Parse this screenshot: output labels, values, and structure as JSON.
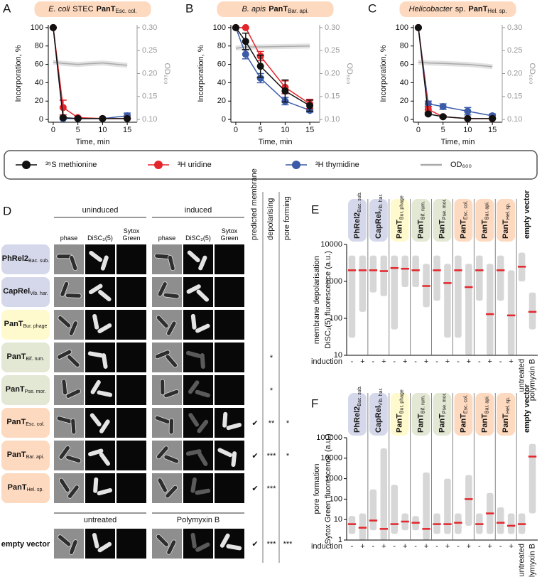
{
  "chart_data": [
    {
      "type": "line",
      "panel": "A",
      "title_italic": "E. coli",
      "title": "STEC",
      "title_bold": "PanT",
      "title_sub": "Esc. col.",
      "title_color": "#fdd9bf",
      "xlabel": "Time, min",
      "ylabel": "Incorporation, %",
      "y2label": "OD₆₀₀",
      "x": [
        0,
        2,
        5,
        10,
        15
      ],
      "xlim": [
        -1,
        17
      ],
      "xticks": [
        0,
        5,
        10,
        15
      ],
      "ylim": [
        -3,
        103
      ],
      "yticks": [
        0,
        20,
        40,
        60,
        80,
        100
      ],
      "y2lim": [
        0.094,
        0.306
      ],
      "y2ticks": [
        {
          "value": 0.1,
          "label": "0.10"
        },
        {
          "value": 0.15,
          "label": "0.15"
        },
        {
          "value": 0.2,
          "label": "0.20"
        },
        {
          "value": 0.25,
          "label": "0.25"
        },
        {
          "value": 0.3,
          "label": "0.30"
        }
      ],
      "legend": "bottom",
      "series": [
        {
          "name": "³⁵S methionine",
          "color": "#111111",
          "values": [
            100,
            2,
            1,
            1,
            1
          ],
          "errors": [
            0,
            1,
            1,
            0,
            0
          ]
        },
        {
          "name": "³H uridine",
          "color": "#e3262b",
          "values": [
            100,
            13,
            2,
            1,
            1
          ],
          "errors": [
            0,
            8,
            1,
            0,
            0
          ]
        },
        {
          "name": "³H thymidine",
          "color": "#3b5ba9",
          "values": [
            100,
            1,
            1,
            1,
            4
          ],
          "errors": [
            0,
            1,
            0,
            0,
            3
          ]
        },
        {
          "name": "OD₆₀₀",
          "color": "#aaaaaa",
          "axis": "y2",
          "values": [
            0.225,
            0.222,
            0.22,
            0.223,
            0.218
          ]
        }
      ]
    },
    {
      "type": "line",
      "panel": "B",
      "title_italic": "B. apis",
      "title_bold": "PanT",
      "title_sub": "Bar. api.",
      "title_color": "#fdd9bf",
      "xlabel": "Time, min",
      "ylabel": "Incorporation, %",
      "y2label": "OD₆₀₀",
      "x": [
        0,
        2,
        5,
        10,
        15
      ],
      "xlim": [
        -1,
        17
      ],
      "xticks": [
        0,
        5,
        10,
        15
      ],
      "ylim": [
        -3,
        103
      ],
      "yticks": [
        0,
        20,
        40,
        60,
        80,
        100
      ],
      "y2lim": [
        0.094,
        0.306
      ],
      "y2ticks": [
        {
          "value": 0.1,
          "label": "0.10"
        },
        {
          "value": 0.15,
          "label": "0.15"
        },
        {
          "value": 0.2,
          "label": "0.20"
        },
        {
          "value": 0.25,
          "label": "0.25"
        },
        {
          "value": 0.3,
          "label": "0.30"
        }
      ],
      "series": [
        {
          "color": "#111111",
          "values": [
            100,
            85,
            58,
            31,
            15
          ],
          "errors": [
            0,
            9,
            12,
            12,
            6
          ]
        },
        {
          "color": "#e3262b",
          "values": [
            100,
            100,
            69,
            35,
            17
          ],
          "errors": [
            0,
            0,
            5,
            7,
            5
          ]
        },
        {
          "color": "#3b5ba9",
          "values": [
            100,
            71,
            45,
            20,
            10
          ],
          "errors": [
            0,
            5,
            5,
            4,
            2
          ]
        },
        {
          "color": "#aaaaaa",
          "axis": "y2",
          "values": [
            0.255,
            0.258,
            0.258,
            0.259,
            0.26
          ]
        }
      ]
    },
    {
      "type": "line",
      "panel": "C",
      "title_italic": "Helicobacter",
      "title": "sp.",
      "title_bold": "PanT",
      "title_sub": "Hel. sp.",
      "title_color": "#fdd9bf",
      "xlabel": "Time, min",
      "ylabel": "Incorporation, %",
      "y2label": "OD₆₀₀",
      "x": [
        0,
        2,
        5,
        10,
        15
      ],
      "xlim": [
        -1,
        17
      ],
      "xticks": [
        0,
        5,
        10,
        15
      ],
      "ylim": [
        -3,
        103
      ],
      "yticks": [
        0,
        20,
        40,
        60,
        80,
        100
      ],
      "y2lim": [
        0.094,
        0.306
      ],
      "y2ticks": [
        {
          "value": 0.1,
          "label": "0.10"
        },
        {
          "value": 0.15,
          "label": "0.15"
        },
        {
          "value": 0.2,
          "label": "0.20"
        },
        {
          "value": 0.25,
          "label": "0.25"
        },
        {
          "value": 0.3,
          "label": "0.30"
        }
      ],
      "series": [
        {
          "color": "#111111",
          "values": [
            100,
            6,
            3,
            1,
            1
          ],
          "errors": [
            0,
            1,
            1,
            0,
            0
          ]
        },
        {
          "color": "#e3262b",
          "values": [
            100,
            11,
            3,
            1,
            1
          ],
          "errors": [
            0,
            3,
            1,
            0,
            0
          ]
        },
        {
          "color": "#3b5ba9",
          "values": [
            100,
            17,
            14,
            9,
            4
          ],
          "errors": [
            0,
            3,
            3,
            4,
            2
          ]
        },
        {
          "color": "#aaaaaa",
          "axis": "y2",
          "values": [
            0.225,
            0.223,
            0.222,
            0.22,
            0.215
          ]
        }
      ]
    },
    {
      "type": "strip",
      "panel": "E",
      "side_label": "membrane depolarisation",
      "ylabel": "DiSC₃(5) fluorescence (a.u.)",
      "xlabel": "induction",
      "log": true,
      "ylim": [
        10,
        10000
      ],
      "yticks": [
        10,
        100,
        1000,
        10000
      ],
      "median_color": "#e3262b",
      "groups": [
        {
          "name": "PhRel2",
          "sub": "Bac. sub.",
          "color": "#d5d8ea"
        },
        {
          "name": "CapRel",
          "sub": "Vib. har.",
          "color": "#d5d8ea"
        },
        {
          "name": "PanT",
          "sub": "Bur. phage",
          "color": "#fffacd"
        },
        {
          "name": "PanT",
          "sub": "Bif. rum.",
          "color": "#e2e8d3"
        },
        {
          "name": "PanT",
          "sub": "Pse. mor.",
          "color": "#e2e8d3"
        },
        {
          "name": "PanT",
          "sub": "Esc. col.",
          "color": "#fdd9bf"
        },
        {
          "name": "PanT",
          "sub": "Bar. api.",
          "color": "#fdd9bf"
        },
        {
          "name": "PanT",
          "sub": "Hel. sp.",
          "color": "#fdd9bf"
        },
        {
          "name": "empty vector"
        }
      ],
      "categories": [
        "-",
        "+",
        "-",
        "+",
        "-",
        "+",
        "-",
        "+",
        "-",
        "+",
        "-",
        "+",
        "-",
        "+",
        "-",
        "+",
        "untreated",
        "polymyxin B"
      ],
      "values": [
        2000,
        2000,
        2000,
        1900,
        2300,
        2200,
        2000,
        750,
        2000,
        900,
        2000,
        700,
        2000,
        130,
        2000,
        120,
        2500,
        150
      ],
      "ranges": [
        [
          30,
          5000
        ],
        [
          150,
          5000
        ],
        [
          500,
          5000
        ],
        [
          400,
          5000
        ],
        [
          50,
          5000
        ],
        [
          700,
          5000
        ],
        [
          700,
          5000
        ],
        [
          200,
          3000
        ],
        [
          300,
          5000
        ],
        [
          30,
          3000
        ],
        [
          30,
          5000
        ],
        [
          10,
          3000
        ],
        [
          300,
          5000
        ],
        [
          10,
          3000
        ],
        [
          300,
          5000
        ],
        [
          10,
          2000
        ],
        [
          1000,
          6000
        ],
        [
          50,
          500
        ]
      ]
    },
    {
      "type": "strip",
      "panel": "F",
      "side_label": "pore formation",
      "ylabel": "Sytox Green fluorescence (a.u.)",
      "xlabel": "induction",
      "log": true,
      "ylim": [
        1,
        100000
      ],
      "yticks": [
        1,
        10,
        100,
        1000,
        10000,
        100000
      ],
      "median_color": "#e3262b",
      "groups": [
        {
          "name": "PhRel2",
          "sub": "Bac. sub.",
          "color": "#d5d8ea"
        },
        {
          "name": "CapRel",
          "sub": "Vib. har.",
          "color": "#d5d8ea"
        },
        {
          "name": "PanT",
          "sub": "Bur. phage",
          "color": "#fffacd"
        },
        {
          "name": "PanT",
          "sub": "Bif. rum.",
          "color": "#e2e8d3"
        },
        {
          "name": "PanT",
          "sub": "Pse. mor.",
          "color": "#e2e8d3"
        },
        {
          "name": "PanT",
          "sub": "Esc. col.",
          "color": "#fdd9bf"
        },
        {
          "name": "PanT",
          "sub": "Bar. api.",
          "color": "#fdd9bf"
        },
        {
          "name": "PanT",
          "sub": "Hel. sp.",
          "color": "#fdd9bf"
        },
        {
          "name": "empty vector"
        }
      ],
      "categories": [
        "-",
        "+",
        "-",
        "+",
        "-",
        "+",
        "-",
        "+",
        "-",
        "+",
        "-",
        "+",
        "-",
        "+",
        "-",
        "+",
        "untreated",
        "polymyxin B"
      ],
      "values": [
        6,
        4,
        9,
        3.5,
        6,
        8,
        7,
        3.5,
        6,
        6,
        7,
        100,
        6,
        20,
        7,
        5,
        6,
        12000
      ],
      "ranges": [
        [
          2,
          15
        ],
        [
          1,
          20
        ],
        [
          3,
          300
        ],
        [
          1,
          30000
        ],
        [
          2,
          500
        ],
        [
          3,
          20
        ],
        [
          3,
          15
        ],
        [
          1,
          2000
        ],
        [
          2,
          20
        ],
        [
          2,
          1000
        ],
        [
          2,
          20
        ],
        [
          5,
          1500
        ],
        [
          2,
          20
        ],
        [
          2,
          200
        ],
        [
          2,
          40
        ],
        [
          2,
          20
        ],
        [
          2,
          20
        ],
        [
          20,
          50000
        ]
      ]
    }
  ],
  "panel_d": {
    "panel": "D",
    "header_uninduced": "uninduced",
    "header_induced": "induced",
    "columns": [
      "phase",
      "DiSC₃(5)",
      "Sytox Green"
    ],
    "mark_headers": [
      "predicted membrane",
      "depolarising",
      "pore forming"
    ],
    "rows": [
      {
        "name": "PhRel2",
        "sub": "Bac. sub.",
        "color": "#d5d8ea",
        "marks": [
          null,
          null,
          null
        ]
      },
      {
        "name": "CapRel",
        "sub": "Vib. har.",
        "color": "#d5d8ea",
        "marks": [
          null,
          null,
          null
        ]
      },
      {
        "name": "PanT",
        "sub": "Bur. phage",
        "color": "#fffacd",
        "marks": [
          null,
          null,
          null
        ]
      },
      {
        "name": "PanT",
        "sub": "Bif. rum.",
        "color": "#e2e8d3",
        "marks": [
          null,
          "*",
          null
        ]
      },
      {
        "name": "PanT",
        "sub": "Pse. mor.",
        "color": "#e2e8d3",
        "marks": [
          null,
          "*",
          null
        ]
      },
      {
        "name": "PanT",
        "sub": "Esc. col.",
        "color": "#fdd9bf",
        "marks": [
          "✔",
          "**",
          "*"
        ]
      },
      {
        "name": "PanT",
        "sub": "Bar. api.",
        "color": "#fdd9bf",
        "marks": [
          "✔",
          "***",
          "*"
        ]
      },
      {
        "name": "PanT",
        "sub": "Hel. sp.",
        "color": "#fdd9bf",
        "marks": [
          "✔",
          "***",
          null
        ]
      }
    ],
    "control": {
      "left": "untreated",
      "right": "Polymyxin B",
      "name": "empty vector",
      "marks": [
        "✔",
        "***",
        "***"
      ]
    }
  }
}
